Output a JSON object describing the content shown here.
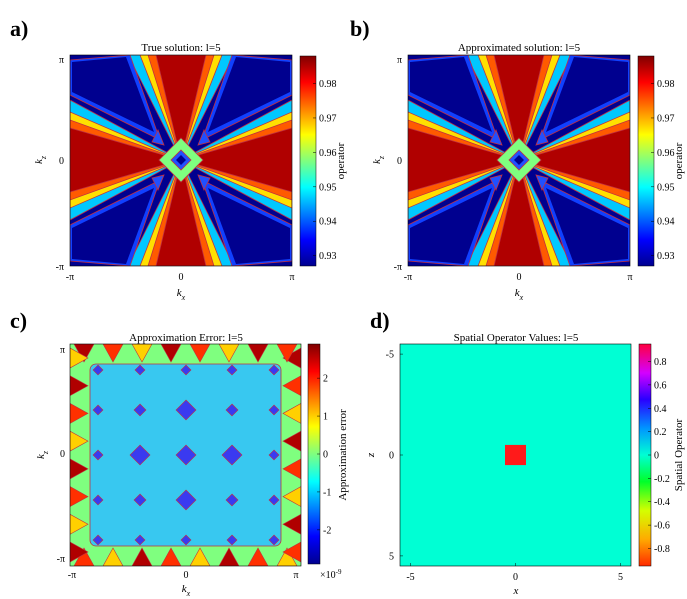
{
  "chart_data": [
    {
      "panel": "a)",
      "type": "heatmap",
      "title": "True solution:  l=5",
      "xlabel": "k",
      "xlabel_sub": "x",
      "ylabel": "k",
      "ylabel_sub": "z",
      "xticks": [
        "-π",
        "0",
        "π"
      ],
      "yticks": [
        "π",
        "0",
        "-π"
      ],
      "colorbar": {
        "label": "operator",
        "ticks": [
          "0.98",
          "0.97",
          "0.96",
          "0.95",
          "0.94",
          "0.93"
        ],
        "range": [
          0.927,
          0.988
        ],
        "colormap": "jet"
      }
    },
    {
      "panel": "b)",
      "type": "heatmap",
      "title": "Approximated solution:  l=5",
      "xlabel": "k",
      "xlabel_sub": "x",
      "ylabel": "k",
      "ylabel_sub": "z",
      "xticks": [
        "-π",
        "0",
        "π"
      ],
      "yticks": [
        "π",
        "0",
        "-π"
      ],
      "colorbar": {
        "label": "operator",
        "ticks": [
          "0.98",
          "0.97",
          "0.96",
          "0.95",
          "0.94",
          "0.93"
        ],
        "range": [
          0.927,
          0.988
        ],
        "colormap": "jet"
      }
    },
    {
      "panel": "c)",
      "type": "heatmap",
      "title": "Approximation Error:  l=5",
      "xlabel": "k",
      "xlabel_sub": "x",
      "ylabel": "k",
      "ylabel_sub": "z",
      "xticks": [
        "-π",
        "0",
        "π"
      ],
      "yticks": [
        "π",
        "0",
        "-π"
      ],
      "colorbar": {
        "label": "Approximation error",
        "ticks": [
          "2",
          "1",
          "0",
          "-1",
          "-2"
        ],
        "range": [
          -2.9,
          2.9
        ],
        "exponent_label": "×10",
        "exponent": "-9",
        "colormap": "jet"
      }
    },
    {
      "panel": "d)",
      "type": "heatmap",
      "title": "Spatial Operator Values:  l=5",
      "xlabel": "x",
      "ylabel": "z",
      "xticks": [
        "-5",
        "0",
        "5"
      ],
      "yticks": [
        "-5",
        "0",
        "5"
      ],
      "xlim": [
        -5.5,
        5.5
      ],
      "ylim": [
        -5.5,
        5.5
      ],
      "background_value": 0,
      "center_cell": {
        "x": 0,
        "z": 0,
        "value": 0.95
      },
      "colorbar": {
        "label": "Spatial Operator",
        "ticks": [
          "0.8",
          "0.6",
          "0.4",
          "0.2",
          "0",
          "-0.2",
          "-0.4",
          "-0.6",
          "-0.8"
        ],
        "range": [
          -0.95,
          0.95
        ],
        "colormap": "hsv"
      }
    }
  ]
}
